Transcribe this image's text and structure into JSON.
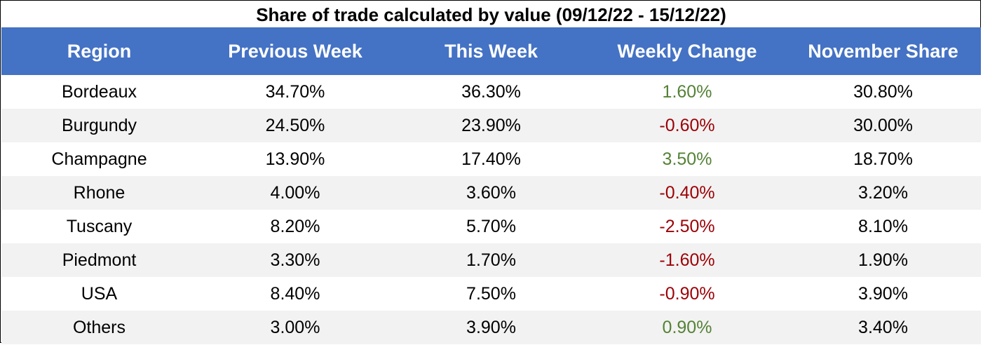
{
  "chart_data": {
    "type": "table",
    "title": "Share of trade calculated by value (09/12/22 - 15/12/22)",
    "columns": [
      "Region",
      "Previous Week",
      "This Week",
      "Weekly Change",
      "November Share"
    ],
    "rows": [
      {
        "region": "Bordeaux",
        "previous_week": "34.70%",
        "this_week": "36.30%",
        "weekly_change": "1.60%",
        "november_share": "30.80%",
        "change_direction": "positive"
      },
      {
        "region": "Burgundy",
        "previous_week": "24.50%",
        "this_week": "23.90%",
        "weekly_change": "-0.60%",
        "november_share": "30.00%",
        "change_direction": "negative"
      },
      {
        "region": "Champagne",
        "previous_week": "13.90%",
        "this_week": "17.40%",
        "weekly_change": "3.50%",
        "november_share": "18.70%",
        "change_direction": "positive"
      },
      {
        "region": "Rhone",
        "previous_week": "4.00%",
        "this_week": "3.60%",
        "weekly_change": "-0.40%",
        "november_share": "3.20%",
        "change_direction": "negative"
      },
      {
        "region": "Tuscany",
        "previous_week": "8.20%",
        "this_week": "5.70%",
        "weekly_change": "-2.50%",
        "november_share": "8.10%",
        "change_direction": "negative"
      },
      {
        "region": "Piedmont",
        "previous_week": "3.30%",
        "this_week": "1.70%",
        "weekly_change": "-1.60%",
        "november_share": "1.90%",
        "change_direction": "negative"
      },
      {
        "region": "USA",
        "previous_week": "8.40%",
        "this_week": "7.50%",
        "weekly_change": "-0.90%",
        "november_share": "3.90%",
        "change_direction": "negative"
      },
      {
        "region": "Others",
        "previous_week": "3.00%",
        "this_week": "3.90%",
        "weekly_change": "0.90%",
        "november_share": "3.40%",
        "change_direction": "positive"
      }
    ]
  },
  "colors": {
    "header_background": "#4472c4",
    "header_text": "#ffffff",
    "stripe_background": "#f2f2f2",
    "positive_change": "#548235",
    "negative_change": "#9c0006"
  }
}
